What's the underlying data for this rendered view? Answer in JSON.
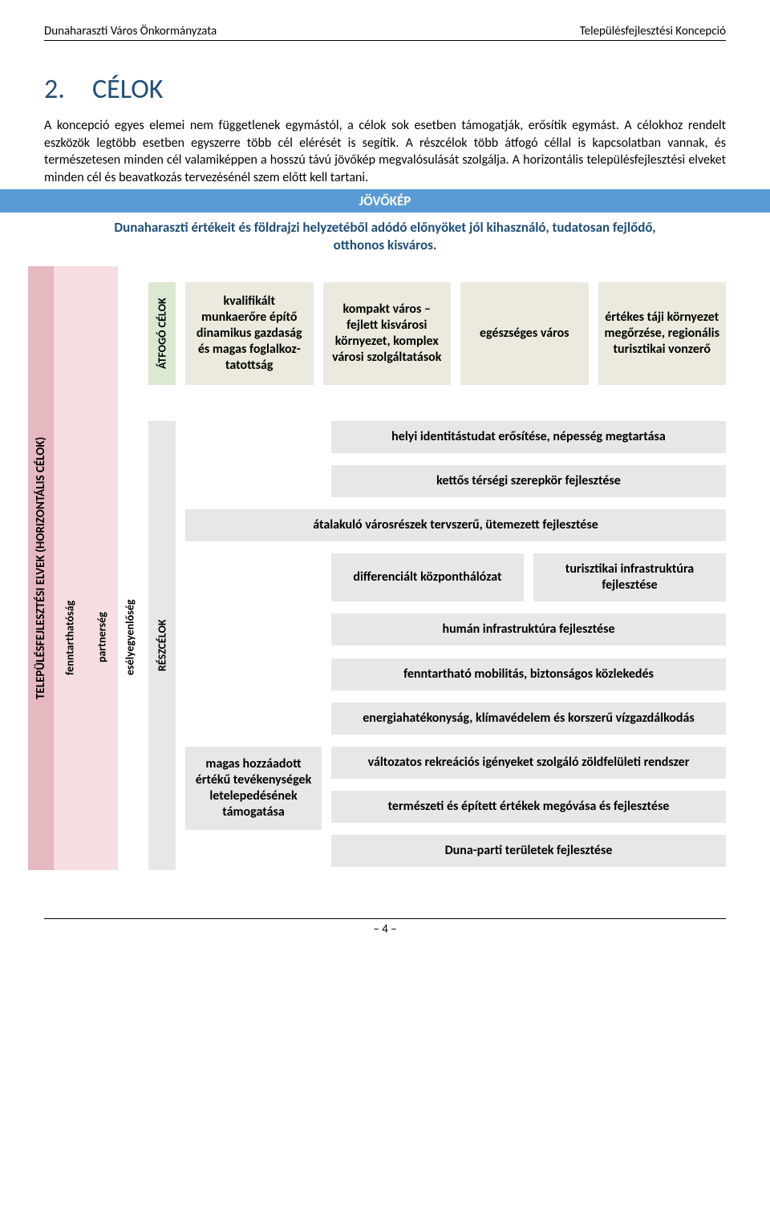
{
  "header": {
    "left": "Dunaharaszti Város Önkormányzata",
    "right": "Településfejlesztési Koncepció"
  },
  "heading": {
    "num": "2.",
    "title": "CÉLOK"
  },
  "intro": "A koncepció egyes elemei nem függetlenek egymástól, a célok sok esetben támogatják, erősítik egymást. A célokhoz rendelt eszközök legtöbb esetben egyszerre több cél elérését is segítik. A részcélok több átfogó céllal is kapcsolatban vannak, és természetesen minden cél valamiképpen a hosszú távú jövőkép megvalósulását szolgálja. A horizontális településfejlesztési elveket minden cél és beavatkozás tervezésénél szem előtt kell tartani.",
  "jovokep": {
    "bar": "JÖVŐKÉP",
    "text": "Dunaharaszti értékeit és földrajzi helyzetéből adódó előnyöket jól kihasználó, tudatosan fejlődő, otthonos kisváros."
  },
  "sidebars": {
    "horiz": "TELEPÜLÉSFEJLESZTÉSI ELVEK (HORIZONTÁLIS CÉLOK)",
    "fenn": "fenntarthatóság",
    "part": "partnerség",
    "esely": "esélyegyenlőség",
    "atfogo": "ÁTFOGÓ CÉLOK",
    "resz": "RÉSZCÉLOK"
  },
  "atfogo": {
    "g1": "kvalifikált munkaerőre építő dinamikus gazdaság és magas foglalkoz­tatottság",
    "g2": "kompakt város – fejlett kisvárosi környezet, komplex városi szolgáltatások",
    "g3": "egészséges város",
    "g4": "értékes táji környezet megőrzése, regionális turisztikai vonzerő"
  },
  "resz": {
    "r1": "helyi identitástudat erősítése, népesség megtartása",
    "r2": "kettős térségi szerepkör fejlesztése",
    "r3": "átalakuló városrészek tervszerű, ütemezett fejlesztése",
    "r4a": "differenciált központhálózat",
    "r4b": "turisztikai infrastruktúra fejlesztése",
    "r5": "humán infrastruktúra fejlesztése",
    "r6": "fenntartható mobilitás, biztonságos közlekedés",
    "r7": "energiahatékonyság, klímavédelem és korszerű vízgazdálkodás",
    "magas": "magas hozzáadott értékű tevékenységek letelepedésének támogatása",
    "r8": "változatos rekreációs igényeket szolgáló zöldfelületi rendszer",
    "r9": "természeti és épített értékek megóvása és fejlesztése",
    "r10": "Duna-parti területek fejlesztése"
  },
  "footer": {
    "page": "– 4 –"
  },
  "colors": {
    "heading": "#1f4e79",
    "jovokep_bar": "#5b9bd5",
    "pink_dark": "#e6b8c0",
    "pink_light": "#f6dde2",
    "green": "#dbe8d2",
    "beige": "#eceade",
    "grey": "#e8e7e7"
  }
}
